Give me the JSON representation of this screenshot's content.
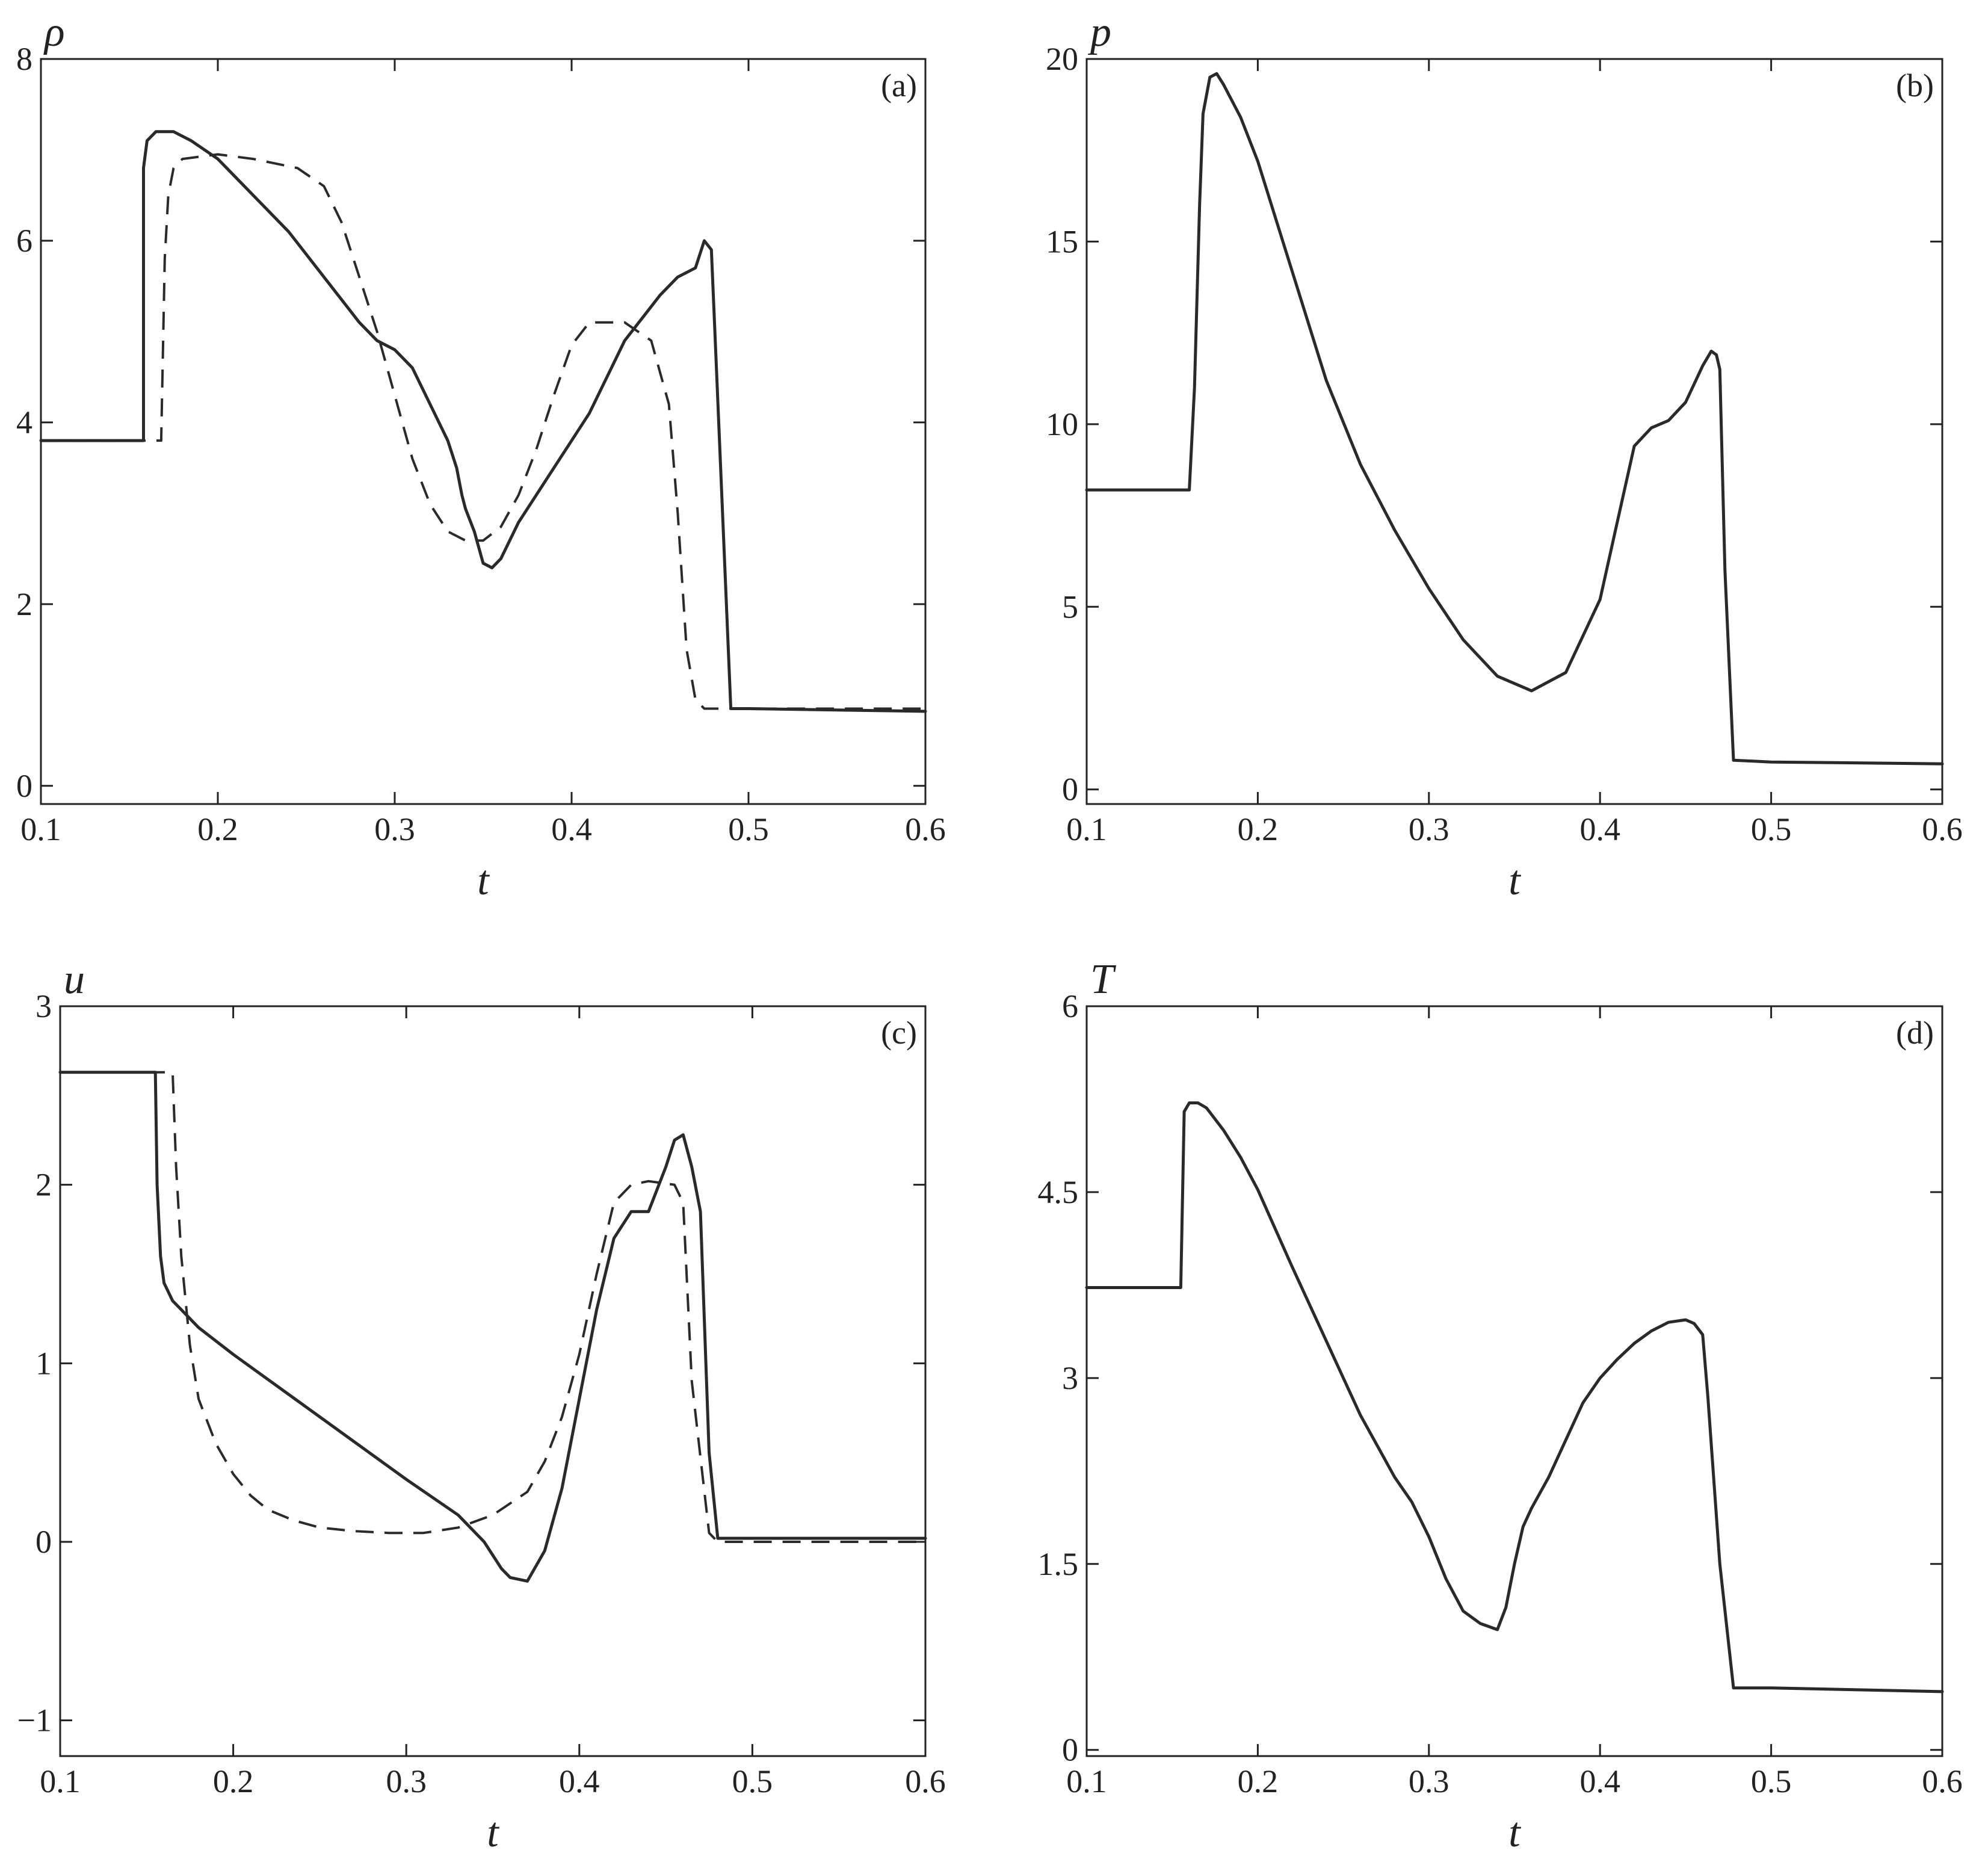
{
  "chart_data": [
    {
      "type": "line",
      "panel_label": "(a)",
      "xlabel": "t",
      "ylabel": "ρ",
      "xlim": [
        0.1,
        0.6
      ],
      "ylim": [
        -0.2,
        8
      ],
      "xticks": [
        "0.1",
        "0.2",
        "0.3",
        "0.4",
        "0.5",
        "0.6"
      ],
      "yticks": [
        "0",
        "2",
        "4",
        "6",
        "8"
      ],
      "series": [
        {
          "style": "solid",
          "x": [
            0.1,
            0.158,
            0.158,
            0.16,
            0.165,
            0.175,
            0.185,
            0.2,
            0.22,
            0.24,
            0.26,
            0.28,
            0.29,
            0.3,
            0.31,
            0.32,
            0.33,
            0.335,
            0.338,
            0.34,
            0.345,
            0.35,
            0.355,
            0.36,
            0.37,
            0.39,
            0.41,
            0.43,
            0.45,
            0.46,
            0.47,
            0.475,
            0.479,
            0.481,
            0.49,
            0.5,
            0.6
          ],
          "y": [
            3.8,
            3.8,
            6.8,
            7.1,
            7.2,
            7.2,
            7.1,
            6.9,
            6.5,
            6.1,
            5.6,
            5.1,
            4.9,
            4.8,
            4.6,
            4.2,
            3.8,
            3.5,
            3.2,
            3.05,
            2.8,
            2.45,
            2.4,
            2.5,
            2.9,
            3.5,
            4.1,
            4.9,
            5.4,
            5.6,
            5.7,
            6.0,
            5.9,
            5.0,
            0.85,
            0.85,
            0.82
          ]
        },
        {
          "style": "dashed",
          "x": [
            0.1,
            0.168,
            0.17,
            0.172,
            0.175,
            0.18,
            0.2,
            0.22,
            0.245,
            0.26,
            0.27,
            0.28,
            0.29,
            0.3,
            0.31,
            0.32,
            0.33,
            0.34,
            0.35,
            0.36,
            0.37,
            0.38,
            0.39,
            0.4,
            0.41,
            0.43,
            0.445,
            0.455,
            0.46,
            0.465,
            0.47,
            0.475,
            0.6
          ],
          "y": [
            3.8,
            3.8,
            5.8,
            6.5,
            6.8,
            6.9,
            6.95,
            6.9,
            6.8,
            6.6,
            6.2,
            5.6,
            5.0,
            4.3,
            3.6,
            3.1,
            2.8,
            2.7,
            2.7,
            2.85,
            3.2,
            3.7,
            4.3,
            4.85,
            5.1,
            5.1,
            4.9,
            4.2,
            3.0,
            1.5,
            0.95,
            0.85,
            0.85
          ]
        }
      ]
    },
    {
      "type": "line",
      "panel_label": "(b)",
      "xlabel": "t",
      "ylabel": "p",
      "xlim": [
        0.1,
        0.6
      ],
      "ylim": [
        -0.4,
        20
      ],
      "xticks": [
        "0.1",
        "0.2",
        "0.3",
        "0.4",
        "0.5",
        "0.6"
      ],
      "yticks": [
        "0",
        "5",
        "10",
        "15",
        "20"
      ],
      "series": [
        {
          "style": "solid",
          "x": [
            0.1,
            0.16,
            0.163,
            0.166,
            0.168,
            0.172,
            0.176,
            0.18,
            0.19,
            0.2,
            0.22,
            0.24,
            0.26,
            0.28,
            0.3,
            0.32,
            0.34,
            0.36,
            0.38,
            0.4,
            0.41,
            0.42,
            0.43,
            0.44,
            0.45,
            0.46,
            0.465,
            0.468,
            0.47,
            0.473,
            0.478,
            0.5,
            0.6
          ],
          "y": [
            8.2,
            8.2,
            11.0,
            16.0,
            18.5,
            19.5,
            19.6,
            19.3,
            18.4,
            17.2,
            14.2,
            11.2,
            8.9,
            7.1,
            5.5,
            4.1,
            3.1,
            2.7,
            3.2,
            5.2,
            7.3,
            9.4,
            9.9,
            10.1,
            10.6,
            11.6,
            12.0,
            11.9,
            11.5,
            6.0,
            0.8,
            0.75,
            0.7
          ]
        }
      ]
    },
    {
      "type": "line",
      "panel_label": "(c)",
      "xlabel": "t",
      "ylabel": "u",
      "xlim": [
        0.1,
        0.6
      ],
      "ylim": [
        -1.2,
        3
      ],
      "xticks": [
        "0.1",
        "0.2",
        "0.3",
        "0.4",
        "0.5",
        "0.6"
      ],
      "yticks": [
        "−1",
        "0",
        "1",
        "2",
        "3"
      ],
      "series": [
        {
          "style": "solid",
          "x": [
            0.1,
            0.155,
            0.156,
            0.158,
            0.16,
            0.165,
            0.17,
            0.18,
            0.2,
            0.25,
            0.3,
            0.33,
            0.345,
            0.355,
            0.36,
            0.37,
            0.38,
            0.39,
            0.4,
            0.41,
            0.42,
            0.43,
            0.44,
            0.45,
            0.455,
            0.46,
            0.465,
            0.47,
            0.475,
            0.48,
            0.6
          ],
          "y": [
            2.63,
            2.63,
            2.0,
            1.6,
            1.45,
            1.35,
            1.3,
            1.2,
            1.05,
            0.7,
            0.35,
            0.15,
            0.0,
            -0.15,
            -0.2,
            -0.22,
            -0.05,
            0.3,
            0.8,
            1.3,
            1.7,
            1.85,
            1.85,
            2.1,
            2.25,
            2.28,
            2.1,
            1.85,
            0.5,
            0.02,
            0.02
          ]
        },
        {
          "style": "dashed",
          "x": [
            0.1,
            0.165,
            0.167,
            0.17,
            0.175,
            0.18,
            0.19,
            0.2,
            0.21,
            0.22,
            0.235,
            0.25,
            0.27,
            0.29,
            0.31,
            0.33,
            0.35,
            0.37,
            0.38,
            0.39,
            0.4,
            0.41,
            0.42,
            0.43,
            0.44,
            0.455,
            0.46,
            0.462,
            0.465,
            0.475,
            0.48,
            0.6
          ],
          "y": [
            2.63,
            2.63,
            2.1,
            1.6,
            1.1,
            0.8,
            0.55,
            0.38,
            0.26,
            0.18,
            0.12,
            0.08,
            0.06,
            0.05,
            0.05,
            0.08,
            0.15,
            0.28,
            0.45,
            0.7,
            1.05,
            1.5,
            1.9,
            2.0,
            2.02,
            2.0,
            1.9,
            1.5,
            0.9,
            0.05,
            0.0,
            0.0
          ]
        }
      ]
    },
    {
      "type": "line",
      "panel_label": "(d)",
      "xlabel": "t",
      "ylabel": "T",
      "xlim": [
        0.1,
        0.6
      ],
      "ylim": [
        -0.05,
        6
      ],
      "xticks": [
        "0.1",
        "0.2",
        "0.3",
        "0.4",
        "0.5",
        "0.6"
      ],
      "yticks": [
        "0",
        "1.5",
        "3",
        "4.5",
        "6"
      ],
      "series": [
        {
          "style": "solid",
          "x": [
            0.1,
            0.155,
            0.157,
            0.16,
            0.165,
            0.17,
            0.18,
            0.19,
            0.2,
            0.22,
            0.24,
            0.26,
            0.27,
            0.28,
            0.29,
            0.3,
            0.31,
            0.32,
            0.33,
            0.34,
            0.345,
            0.35,
            0.355,
            0.36,
            0.37,
            0.38,
            0.39,
            0.4,
            0.41,
            0.42,
            0.43,
            0.44,
            0.45,
            0.455,
            0.46,
            0.463,
            0.47,
            0.478,
            0.5,
            0.6
          ],
          "y": [
            3.73,
            3.73,
            5.15,
            5.22,
            5.22,
            5.18,
            5.0,
            4.78,
            4.52,
            3.9,
            3.3,
            2.7,
            2.45,
            2.2,
            2.0,
            1.72,
            1.38,
            1.12,
            1.02,
            0.97,
            1.15,
            1.5,
            1.8,
            1.95,
            2.2,
            2.5,
            2.8,
            3.0,
            3.15,
            3.28,
            3.38,
            3.45,
            3.47,
            3.44,
            3.35,
            2.85,
            1.5,
            0.5,
            0.5,
            0.47
          ]
        }
      ]
    }
  ]
}
